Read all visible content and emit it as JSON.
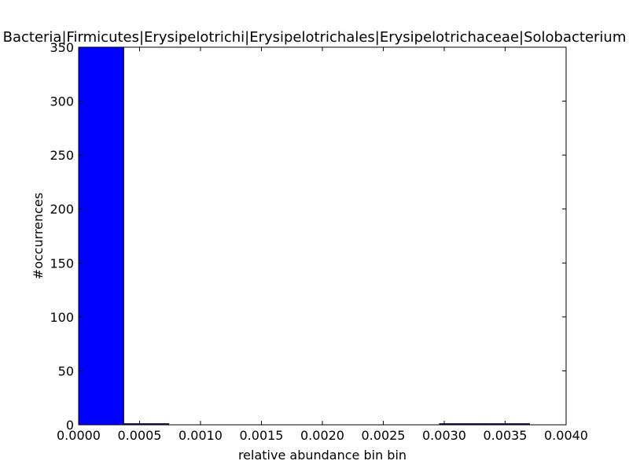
{
  "chart_data": {
    "type": "bar",
    "title": "Bacteria|Firmicutes|Erysipelotrichi|Erysipelotrichales|Erysipelotrichaceae|Solobacterium",
    "xlabel": "relative abundance bin bin",
    "ylabel": "#occurrences",
    "xlim": [
      0.0,
      0.004
    ],
    "ylim": [
      0,
      350
    ],
    "x_ticks": [
      "0.0000",
      "0.0005",
      "0.0010",
      "0.0015",
      "0.0020",
      "0.0025",
      "0.0030",
      "0.0035",
      "0.0040"
    ],
    "y_ticks": [
      "0",
      "50",
      "100",
      "150",
      "200",
      "250",
      "300",
      "350"
    ],
    "bins": [
      {
        "x0": 0.0,
        "x1": 0.00037,
        "count": 350
      },
      {
        "x0": 0.00037,
        "x1": 0.00074,
        "count": 1
      },
      {
        "x0": 0.00074,
        "x1": 0.00111,
        "count": 0
      },
      {
        "x0": 0.00111,
        "x1": 0.00148,
        "count": 0
      },
      {
        "x0": 0.00148,
        "x1": 0.00185,
        "count": 0
      },
      {
        "x0": 0.00185,
        "x1": 0.00222,
        "count": 0
      },
      {
        "x0": 0.00222,
        "x1": 0.00259,
        "count": 0
      },
      {
        "x0": 0.00259,
        "x1": 0.00296,
        "count": 0
      },
      {
        "x0": 0.00296,
        "x1": 0.00333,
        "count": 1
      },
      {
        "x0": 0.00333,
        "x1": 0.0037,
        "count": 1
      }
    ],
    "bar_color": "#0000ff",
    "grid": false,
    "legend": "none"
  }
}
